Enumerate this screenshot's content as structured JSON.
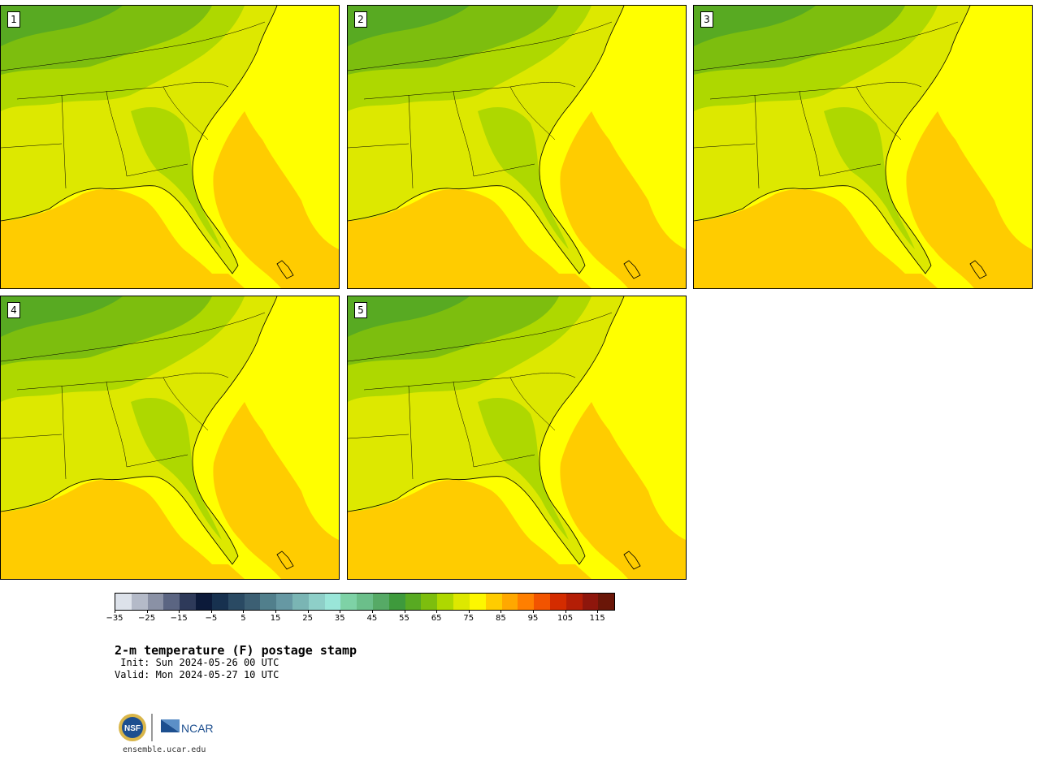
{
  "panels": [
    {
      "label": "1"
    },
    {
      "label": "2"
    },
    {
      "label": "3"
    },
    {
      "label": "4"
    },
    {
      "label": "5"
    }
  ],
  "colorbar": {
    "colors": [
      "#dde2ea",
      "#b4bac8",
      "#8a91a5",
      "#5b6582",
      "#2e3a5a",
      "#0c1a3a",
      "#17314f",
      "#2a4a63",
      "#3c5f73",
      "#517f8c",
      "#6698a3",
      "#7ab5b4",
      "#8ecfc8",
      "#9ae6d9",
      "#7ed2a6",
      "#6bbf8a",
      "#56aa66",
      "#3e9a3c",
      "#58aa22",
      "#7dbe0e",
      "#aed800",
      "#dde800",
      "#fdf700",
      "#ffcc00",
      "#ffa800",
      "#ff7f00",
      "#f25400",
      "#d42c00",
      "#b41e06",
      "#8e160c",
      "#6a1608"
    ],
    "ticks": [
      "−35",
      "−25",
      "−15",
      "−5",
      "5",
      "15",
      "25",
      "35",
      "45",
      "55",
      "65",
      "75",
      "85",
      "95",
      "105",
      "115"
    ]
  },
  "title": "2-m temperature (F) postage stamp",
  "init": " Init: Sun 2024-05-26 00 UTC",
  "valid": "Valid: Mon 2024-05-27 10 UTC",
  "logos": {
    "nsf": "NSF",
    "ncar": "NCAR"
  },
  "site": "ensemble.ucar.edu"
}
